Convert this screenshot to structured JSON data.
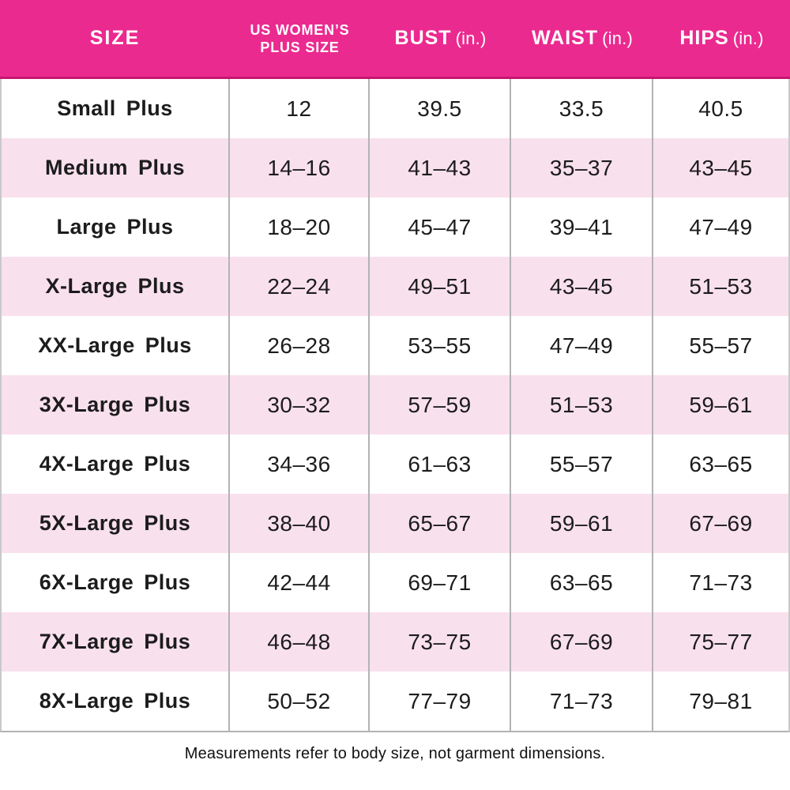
{
  "chart_data": {
    "type": "table",
    "title": "",
    "columns": [
      {
        "key": "size",
        "label": "SIZE",
        "unit": ""
      },
      {
        "key": "us_plus_size",
        "label": "US WOMEN'S PLUS SIZE",
        "unit": "",
        "lines": [
          "US WOMEN’S",
          "PLUS SIZE"
        ]
      },
      {
        "key": "bust",
        "label": "BUST",
        "unit": "(in.)"
      },
      {
        "key": "waist",
        "label": "WAIST",
        "unit": "(in.)"
      },
      {
        "key": "hips",
        "label": "HIPS",
        "unit": "(in.)"
      }
    ],
    "rows": [
      {
        "size": "Small Plus",
        "us_plus_size": "12",
        "bust": "39.5",
        "waist": "33.5",
        "hips": "40.5"
      },
      {
        "size": "Medium Plus",
        "us_plus_size": "14–16",
        "bust": "41–43",
        "waist": "35–37",
        "hips": "43–45"
      },
      {
        "size": "Large Plus",
        "us_plus_size": "18–20",
        "bust": "45–47",
        "waist": "39–41",
        "hips": "47–49"
      },
      {
        "size": "X-Large Plus",
        "us_plus_size": "22–24",
        "bust": "49–51",
        "waist": "43–45",
        "hips": "51–53"
      },
      {
        "size": "XX-Large Plus",
        "us_plus_size": "26–28",
        "bust": "53–55",
        "waist": "47–49",
        "hips": "55–57"
      },
      {
        "size": "3X-Large Plus",
        "us_plus_size": "30–32",
        "bust": "57–59",
        "waist": "51–53",
        "hips": "59–61"
      },
      {
        "size": "4X-Large Plus",
        "us_plus_size": "34–36",
        "bust": "61–63",
        "waist": "55–57",
        "hips": "63–65"
      },
      {
        "size": "5X-Large Plus",
        "us_plus_size": "38–40",
        "bust": "65–67",
        "waist": "59–61",
        "hips": "67–69"
      },
      {
        "size": "6X-Large Plus",
        "us_plus_size": "42–44",
        "bust": "69–71",
        "waist": "63–65",
        "hips": "71–73"
      },
      {
        "size": "7X-Large Plus",
        "us_plus_size": "46–48",
        "bust": "73–75",
        "waist": "67–69",
        "hips": "75–77"
      },
      {
        "size": "8X-Large Plus",
        "us_plus_size": "50–52",
        "bust": "77–79",
        "waist": "71–73",
        "hips": "79–81"
      }
    ],
    "footnote": "Measurements refer to body size, not garment dimensions.",
    "layout": {
      "striped": true,
      "header_position": "top",
      "grid": "vertical-dividers-only"
    }
  },
  "colors": {
    "header_bg": "#EB2A90",
    "header_border": "#C8156E",
    "header_text": "#FFFFFF",
    "row_alt_bg": "#F9E0ED",
    "row_bg": "#FFFFFF",
    "divider": "#B3B3B3",
    "text": "#1C1C1C"
  }
}
